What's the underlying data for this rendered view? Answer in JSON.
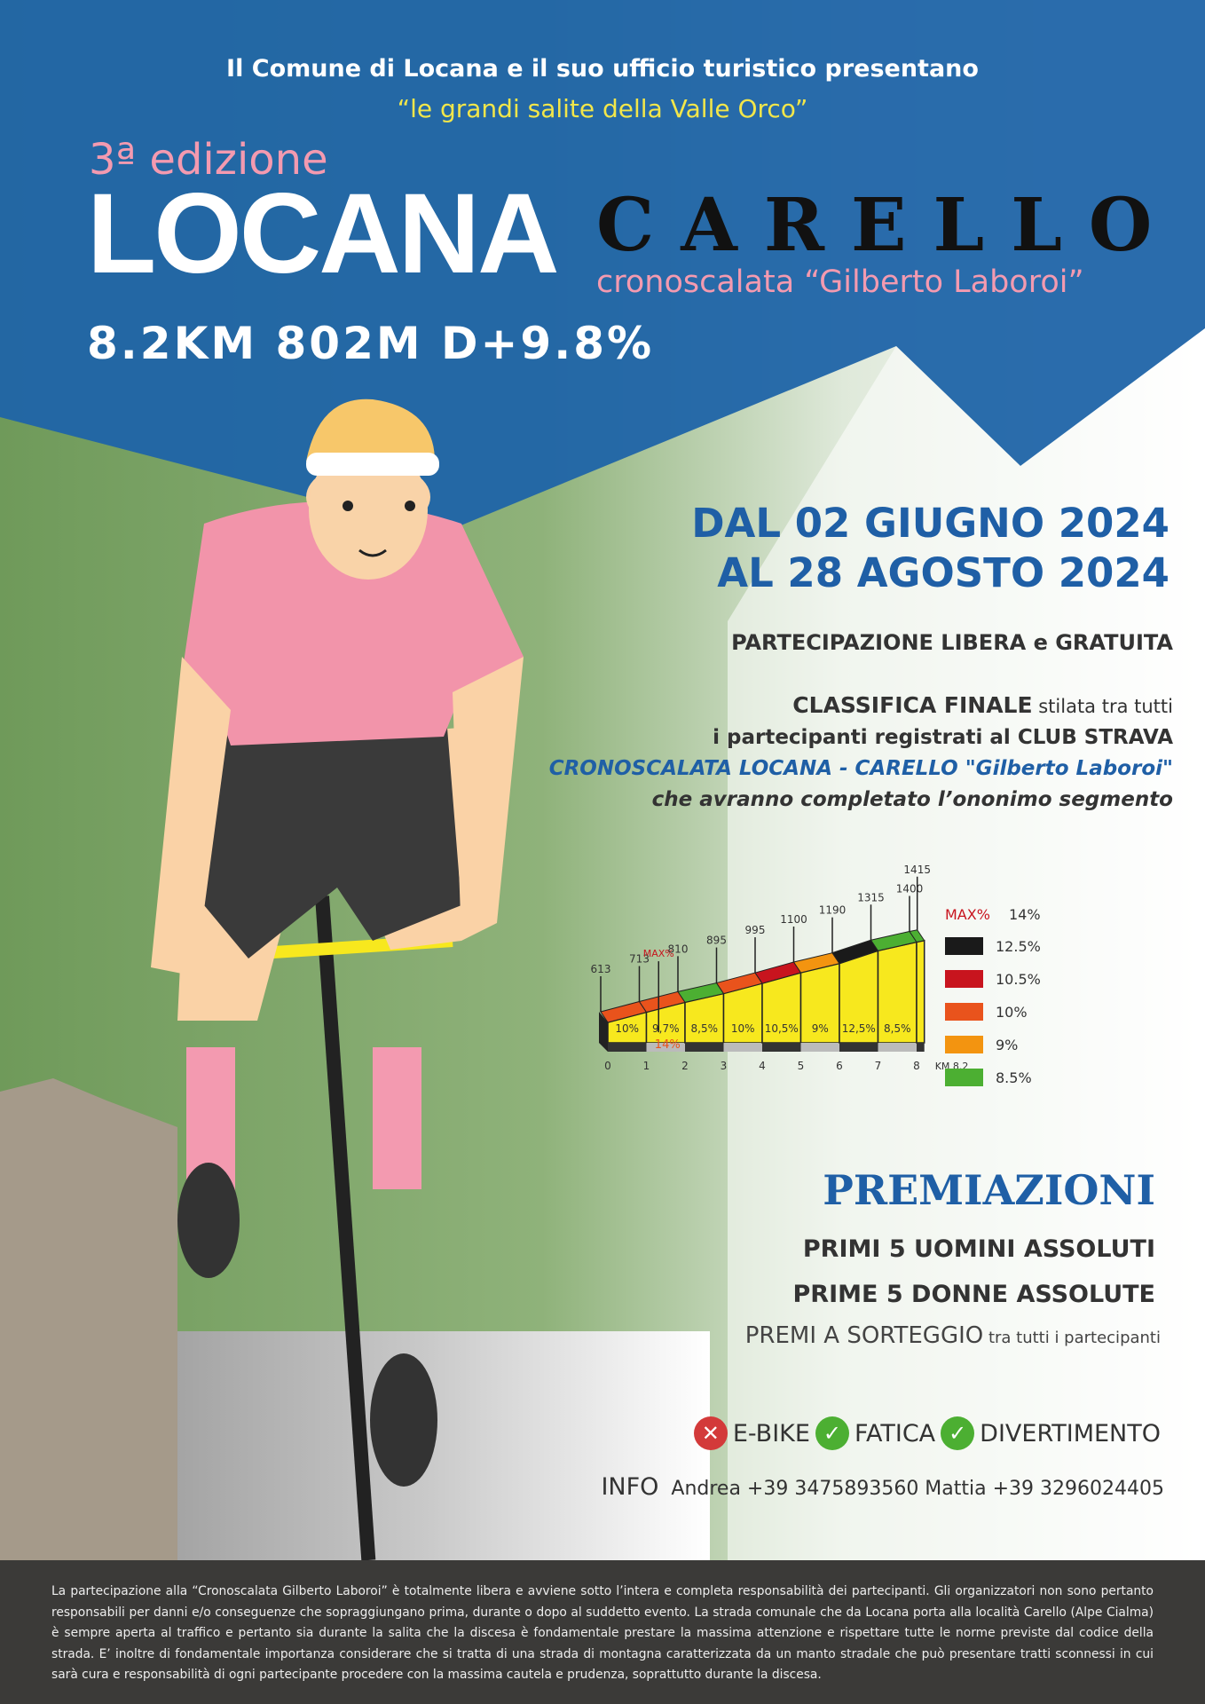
{
  "header": {
    "intro": "Il Comune di Locana e il suo ufficio turistico presentano",
    "subtitle": "“le grandi salite della Valle Orco”",
    "edition": "3ª edizione",
    "title_main": "LOCANA",
    "title_second": "CARELLO",
    "event_name": "cronoscalata “Gilberto Laboroi”",
    "stats": "8.2KM 802M D+9.8%"
  },
  "dates": {
    "line1": "DAL 02 GIUGNO 2024",
    "line2": "AL 28 AGOSTO 2024"
  },
  "participation": "PARTECIPAZIONE LIBERA e GRATUITA",
  "classifica": {
    "line1_bold": "CLASSIFICA FINALE",
    "line1_rest": " stilata tra tutti",
    "line2": "i partecipanti registrati al CLUB STRAVA",
    "line3": "CRONOSCALATA LOCANA - CARELLO \"Gilberto Laboroi\"",
    "line4": "che avranno completato l’ononimo segmento"
  },
  "colors": {
    "blue": "#1f5fa6",
    "pink": "#f39ab0",
    "yellow_text": "#f2e64a",
    "profile_fill": "#f7e81e"
  },
  "chart_data": {
    "type": "area",
    "title": "",
    "xlabel": "KM",
    "x_end_label": "8.2",
    "km_ticks": [
      "0",
      "1",
      "2",
      "3",
      "4",
      "5",
      "6",
      "7",
      "8"
    ],
    "elevations": [
      {
        "km": 0,
        "m": 613
      },
      {
        "km": 1,
        "m": 713
      },
      {
        "km": 2,
        "m": 810
      },
      {
        "km": 3,
        "m": 895
      },
      {
        "km": 4,
        "m": 995
      },
      {
        "km": 5,
        "m": 1100
      },
      {
        "km": 6,
        "m": 1190
      },
      {
        "km": 7,
        "m": 1315
      },
      {
        "km": 8,
        "m": 1400
      },
      {
        "km": 8.2,
        "m": 1415
      }
    ],
    "elevation_labels": [
      "613",
      "713",
      "810",
      "895",
      "995",
      "1100",
      "1190",
      "1315",
      "1400",
      "1415"
    ],
    "segment_gradients": [
      "10%",
      "9,7%",
      "8,5%",
      "10%",
      "10,5%",
      "9%",
      "12,5%",
      "8,5%"
    ],
    "max_marker": {
      "label": "MAX%",
      "value": "14%",
      "km": 1.5
    },
    "legend": {
      "max_label": "MAX%",
      "max_value": "14%",
      "items": [
        {
          "label": "12.5%",
          "color": "#1a1a1a"
        },
        {
          "label": "10.5%",
          "color": "#c8141e"
        },
        {
          "label": "10%",
          "color": "#e9531c"
        },
        {
          "label": "9%",
          "color": "#f39410"
        },
        {
          "label": "8.5%",
          "color": "#4caf32"
        }
      ]
    },
    "segment_colors": [
      "#e9531c",
      "#e9531c",
      "#4caf32",
      "#e9531c",
      "#c8141e",
      "#f39410",
      "#1a1a1a",
      "#4caf32",
      "#4caf32"
    ]
  },
  "premiazioni": {
    "title": "PREMIAZIONI",
    "line1": "PRIMI 5 UOMINI ASSOLUTI",
    "line2": "PRIME 5 DONNE ASSOLUTE",
    "line3_a": "PREMI A SORTEGGIO",
    "line3_b": " tra tutti i partecipanti"
  },
  "badges": [
    {
      "icon": "x-icon",
      "label": "E-BIKE",
      "color": "#d33a3a"
    },
    {
      "icon": "check-icon",
      "label": "FATICA",
      "color": "#4caf32"
    },
    {
      "icon": "check-icon",
      "label": "DIVERTIMENTO",
      "color": "#4caf32"
    }
  ],
  "info": {
    "label": "INFO",
    "contacts": "Andrea +39 3475893560 Mattia +39 3296024405"
  },
  "footer": "La partecipazione alla “Cronoscalata Gilberto Laboroi” è totalmente libera e avviene sotto l’intera e completa responsabilità dei partecipanti. Gli organizzatori non sono pertanto responsabili per danni e/o conseguenze che sopraggiungano prima, durante o dopo al suddetto evento. La strada comunale che da Locana porta alla località Carello (Alpe Cialma) è sempre aperta al traffico e pertanto sia durante la salita che la discesa è fondamentale prestare la massima attenzione e rispettare tutte le norme previste dal codice della strada. E’ inoltre di fondamentale importanza considerare che si tratta di una strada di montagna caratterizzata da un manto stradale che può presentare tratti sconnessi in cui sarà cura e responsabilità di ogni partecipante procedere con la massima cautela e prudenza, soprattutto durante la discesa."
}
